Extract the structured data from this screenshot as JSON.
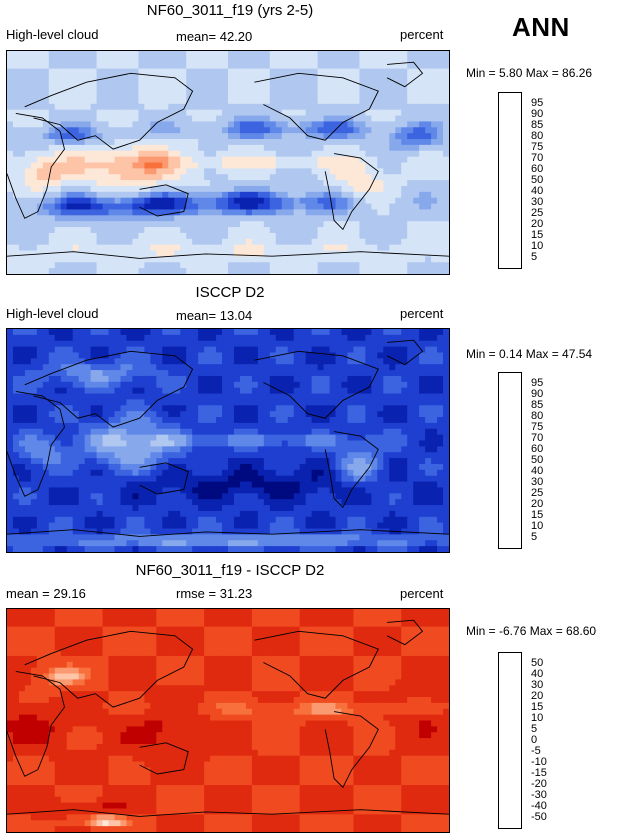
{
  "ann_label": "ANN",
  "panels": [
    {
      "title": "NF60_3011_f19 (yrs 2-5)",
      "left_label": "High-level cloud",
      "mid_label": "mean=  42.20",
      "right_label": "percent",
      "minmax": "Min =    5.80  Max =  86.26",
      "scheme": "model",
      "colorbar": {
        "levels": [
          "95",
          "90",
          "85",
          "80",
          "75",
          "70",
          "60",
          "50",
          "40",
          "30",
          "25",
          "20",
          "15",
          "10",
          "5"
        ],
        "colors": [
          "#8b0000",
          "#c00000",
          "#e02a10",
          "#f04a20",
          "#f8703c",
          "#fb9a70",
          "#fdc4a8",
          "#fde8d8",
          "#d6e4f8",
          "#b0c8f0",
          "#88a8ec",
          "#6088e8",
          "#3c64e0",
          "#1e3fd0",
          "#0a22b0",
          "#000a80"
        ]
      }
    },
    {
      "title": "ISCCP D2",
      "left_label": "High-level cloud",
      "mid_label": "mean=  13.04",
      "right_label": "percent",
      "minmax": "Min =    0.14  Max =  47.54",
      "scheme": "obs",
      "colorbar": {
        "levels": [
          "95",
          "90",
          "85",
          "80",
          "75",
          "70",
          "60",
          "50",
          "40",
          "30",
          "25",
          "20",
          "15",
          "10",
          "5"
        ],
        "colors": [
          "#8b0000",
          "#c00000",
          "#e02a10",
          "#f04a20",
          "#f8703c",
          "#fb9a70",
          "#fdc4a8",
          "#fde8d8",
          "#d6e4f8",
          "#b0c8f0",
          "#88a8ec",
          "#6088e8",
          "#3c64e0",
          "#1e3fd0",
          "#0a22b0",
          "#000a80"
        ]
      }
    },
    {
      "title": "NF60_3011_f19 - ISCCP D2",
      "left_label": "mean =  29.16",
      "mid_label": "rmse =  31.23",
      "right_label": "percent",
      "minmax": "Min =  -6.76  Max =  68.60",
      "scheme": "diff",
      "colorbar": {
        "levels": [
          "50",
          "40",
          "30",
          "20",
          "15",
          "10",
          "5",
          "0",
          "-5",
          "-10",
          "-15",
          "-20",
          "-30",
          "-40",
          "-50"
        ],
        "colors": [
          "#8b0000",
          "#c00000",
          "#e02a10",
          "#f04a20",
          "#f8703c",
          "#fb9a70",
          "#fdc4a8",
          "#fde8d8",
          "#d6e4f8",
          "#b0c8f0",
          "#88a8ec",
          "#6088e8",
          "#3c64e0",
          "#1e3fd0",
          "#0a22b0",
          "#000a80"
        ]
      }
    }
  ],
  "chart_data": [
    {
      "type": "heatmap",
      "title": "NF60_3011_f19 (yrs 2-5)",
      "variable": "High-level cloud",
      "units": "percent",
      "mean": 42.2,
      "min": 5.8,
      "max": 86.26,
      "levels": [
        5,
        10,
        15,
        20,
        25,
        30,
        40,
        50,
        60,
        70,
        75,
        80,
        85,
        90,
        95
      ]
    },
    {
      "type": "heatmap",
      "title": "ISCCP D2",
      "variable": "High-level cloud",
      "units": "percent",
      "mean": 13.04,
      "min": 0.14,
      "max": 47.54,
      "levels": [
        5,
        10,
        15,
        20,
        25,
        30,
        40,
        50,
        60,
        70,
        75,
        80,
        85,
        90,
        95
      ]
    },
    {
      "type": "heatmap",
      "title": "NF60_3011_f19 - ISCCP D2",
      "units": "percent",
      "mean": 29.16,
      "rmse": 31.23,
      "min": -6.76,
      "max": 68.6,
      "levels": [
        -50,
        -40,
        -30,
        -20,
        -15,
        -10,
        -5,
        0,
        5,
        10,
        15,
        20,
        30,
        40,
        50
      ]
    }
  ]
}
